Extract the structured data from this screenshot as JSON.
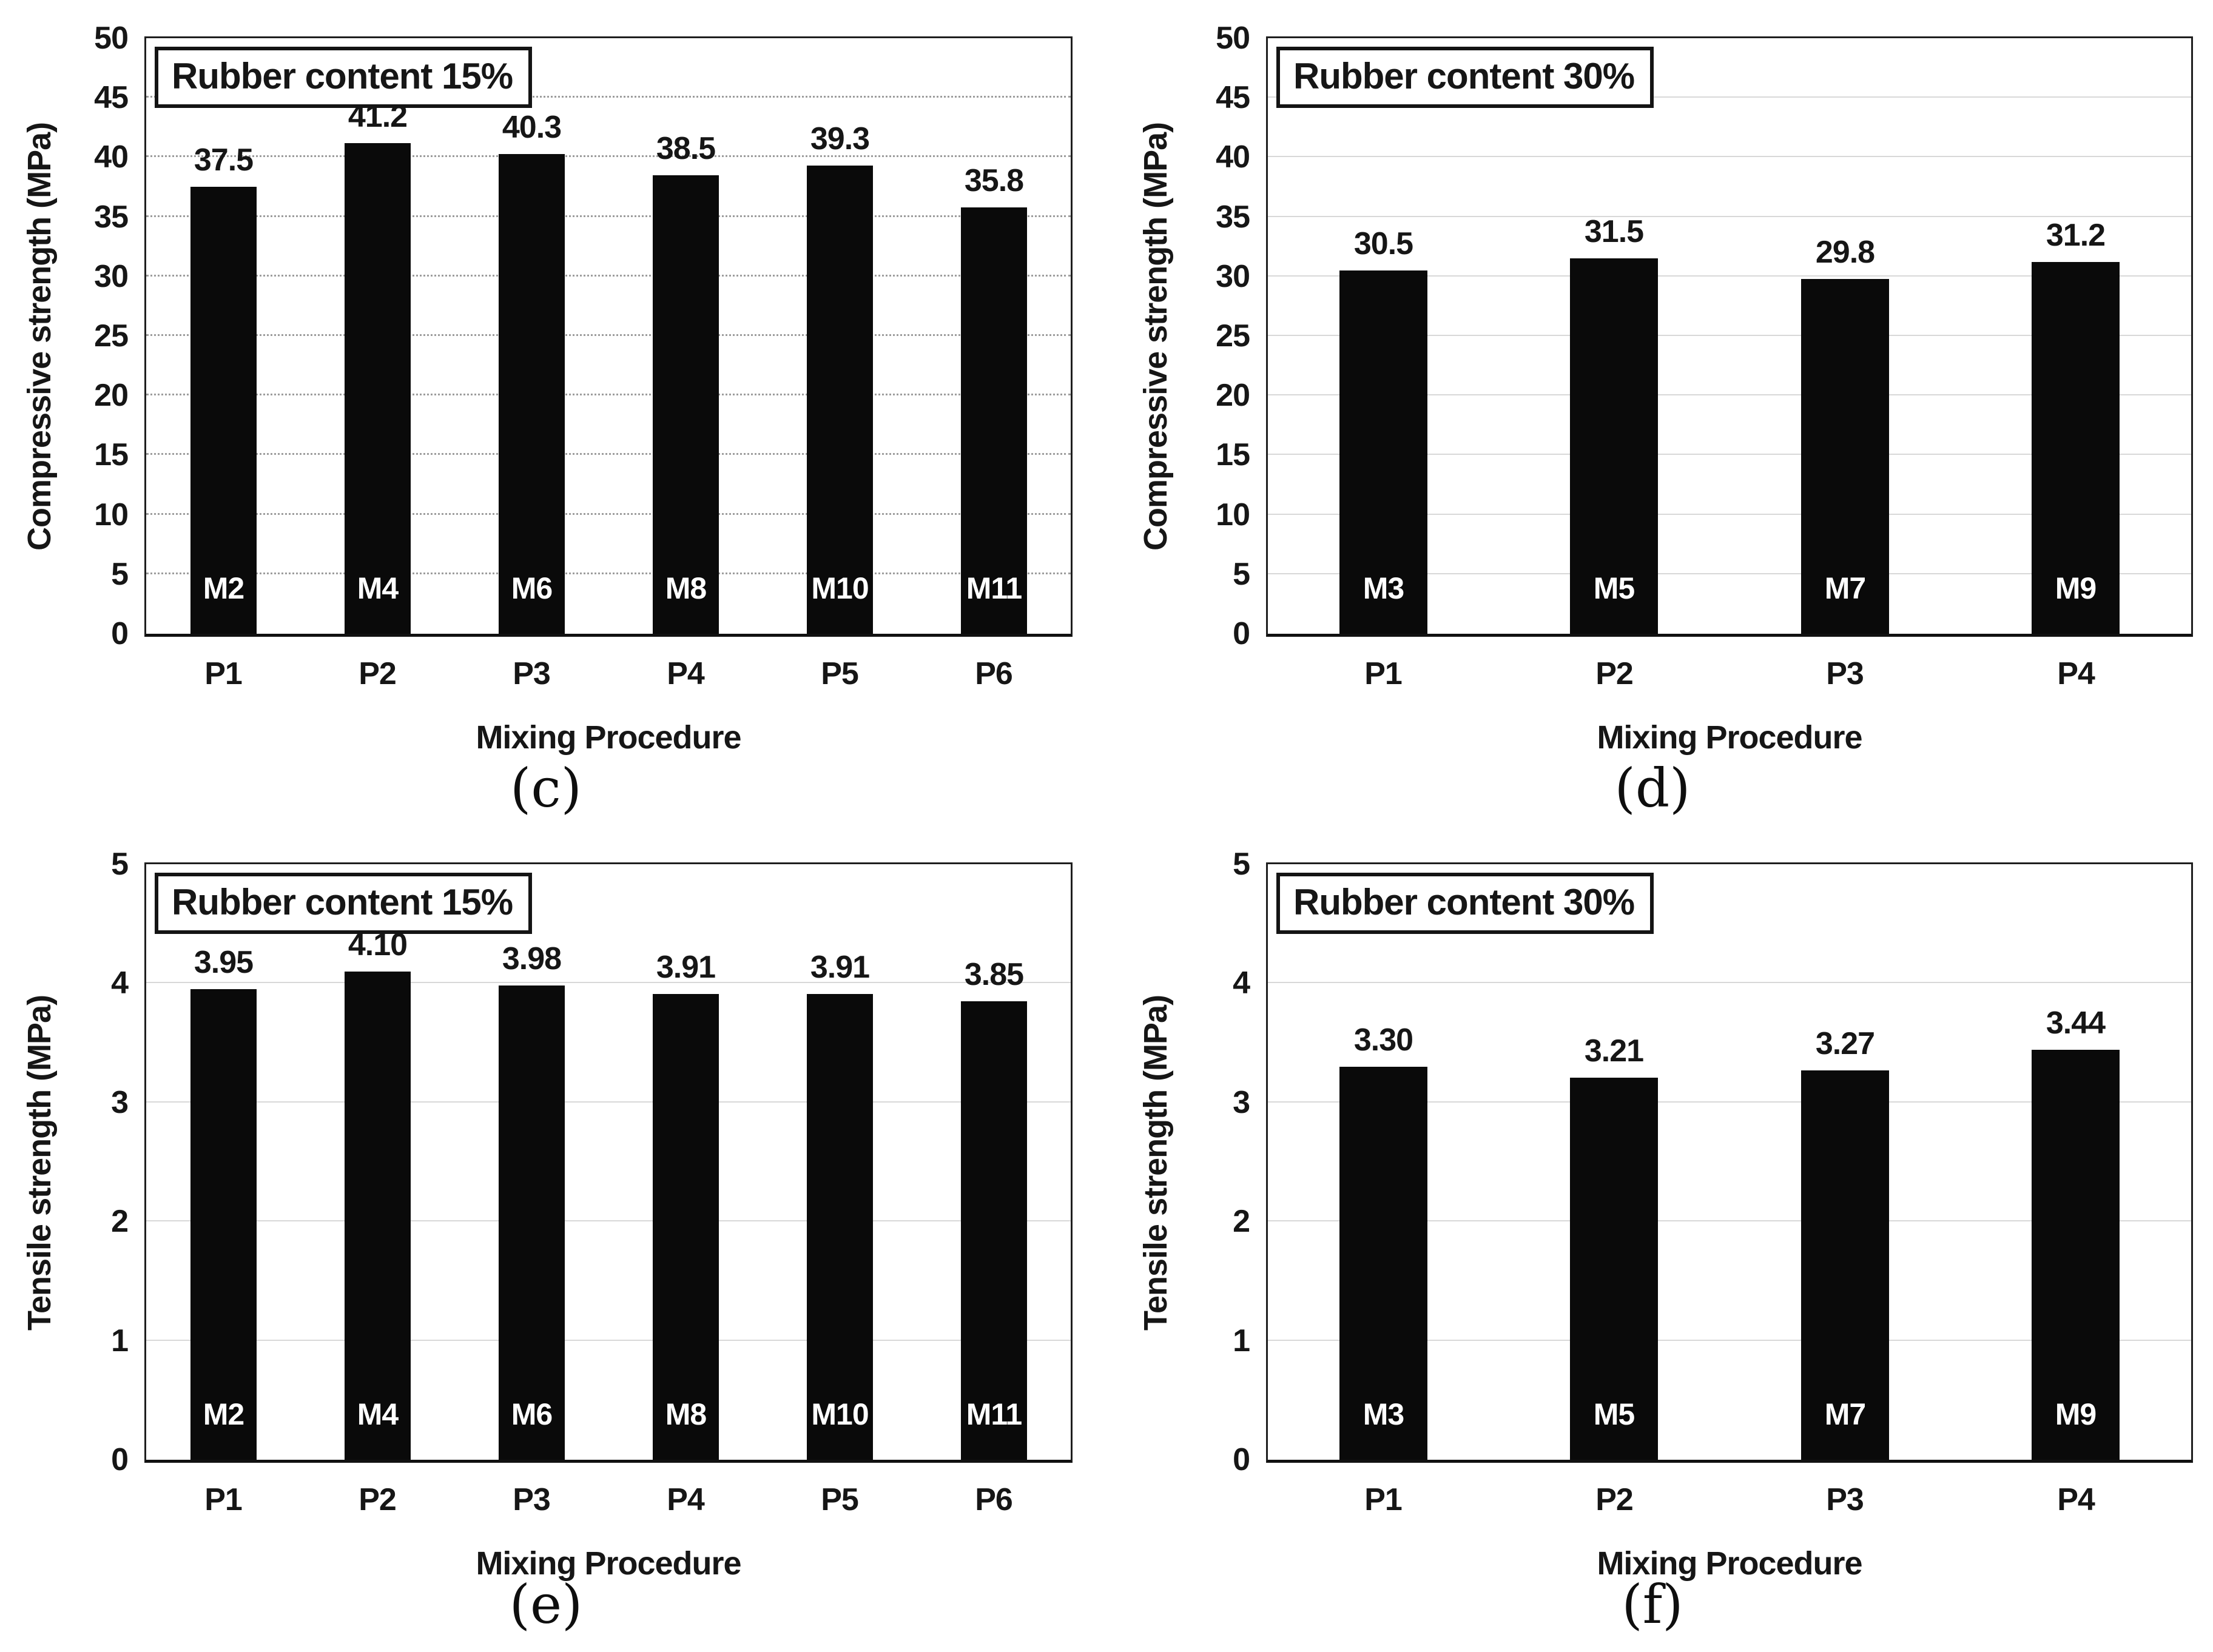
{
  "figure": {
    "background_color": "#ffffff",
    "bar_color": "#0a0a0a",
    "plot_border_color": "#1f1f1f",
    "grid_color_dotted": "#9d9d9d",
    "grid_color_solid": "#d8d8d8",
    "bar_label_color": "#ffffff"
  },
  "chart_data": [
    {
      "type": "bar",
      "panel_caption": "(c)",
      "annotation": "Rubber content 15%",
      "xlabel": "Mixing Procedure",
      "ylabel": "Compressive strength (MPa)",
      "ylim": [
        0,
        50
      ],
      "ytick_step": 5,
      "grid": "dotted",
      "legend": "none",
      "categories": [
        "P1",
        "P2",
        "P3",
        "P4",
        "P5",
        "P6"
      ],
      "values": [
        37.5,
        41.2,
        40.3,
        38.5,
        39.3,
        35.8
      ],
      "value_labels": [
        "37.5",
        "41.2",
        "40.3",
        "38.5",
        "39.3",
        "35.8"
      ],
      "bar_labels": [
        "M2",
        "M4",
        "M6",
        "M8",
        "M10",
        "M11"
      ],
      "bar_width_ratio": 0.43
    },
    {
      "type": "bar",
      "panel_caption": "(d)",
      "annotation": "Rubber content 30%",
      "xlabel": "Mixing Procedure",
      "ylabel": "Compressive strength (MPa)",
      "ylim": [
        0,
        50
      ],
      "ytick_step": 5,
      "grid": "solid",
      "legend": "none",
      "categories": [
        "P1",
        "P2",
        "P3",
        "P4"
      ],
      "values": [
        30.5,
        31.5,
        29.8,
        31.2
      ],
      "value_labels": [
        "30.5",
        "31.5",
        "29.8",
        "31.2"
      ],
      "bar_labels": [
        "M3",
        "M5",
        "M7",
        "M9"
      ],
      "bar_width_ratio": 0.38
    },
    {
      "type": "bar",
      "panel_caption": "(e)",
      "annotation": "Rubber content 15%",
      "xlabel": "Mixing Procedure",
      "ylabel": "Tensile strength (MPa)",
      "ylim": [
        0,
        5
      ],
      "ytick_step": 1,
      "grid": "solid",
      "legend": "none",
      "categories": [
        "P1",
        "P2",
        "P3",
        "P4",
        "P5",
        "P6"
      ],
      "values": [
        3.95,
        4.1,
        3.98,
        3.91,
        3.91,
        3.85
      ],
      "value_labels": [
        "3.95",
        "4.10",
        "3.98",
        "3.91",
        "3.91",
        "3.85"
      ],
      "bar_labels": [
        "M2",
        "M4",
        "M6",
        "M8",
        "M10",
        "M11"
      ],
      "bar_width_ratio": 0.43
    },
    {
      "type": "bar",
      "panel_caption": "(f)",
      "annotation": "Rubber content 30%",
      "xlabel": "Mixing Procedure",
      "ylabel": "Tensile strength (MPa)",
      "ylim": [
        0,
        5
      ],
      "ytick_step": 1,
      "grid": "solid",
      "legend": "none",
      "categories": [
        "P1",
        "P2",
        "P3",
        "P4"
      ],
      "values": [
        3.3,
        3.21,
        3.27,
        3.44
      ],
      "value_labels": [
        "3.30",
        "3.21",
        "3.27",
        "3.44"
      ],
      "bar_labels": [
        "M3",
        "M5",
        "M7",
        "M9"
      ],
      "bar_width_ratio": 0.38
    }
  ]
}
